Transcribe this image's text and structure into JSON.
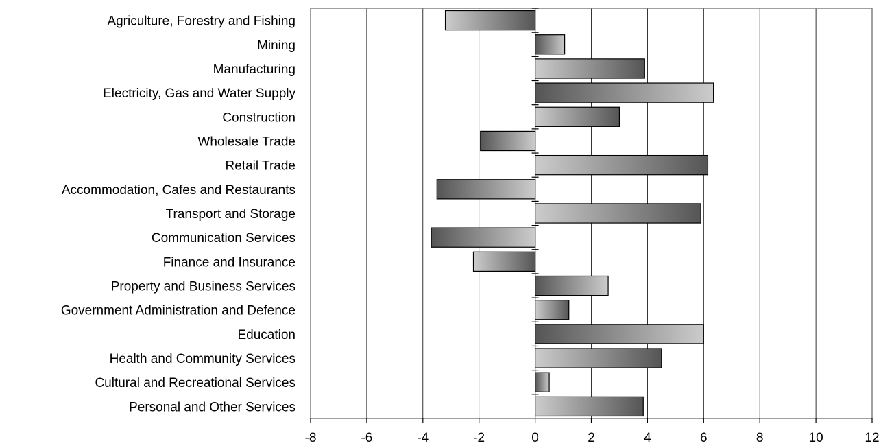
{
  "chart_data": {
    "type": "bar",
    "orientation": "horizontal",
    "title": "",
    "xlabel": "",
    "ylabel": "",
    "xlim": [
      -8,
      12
    ],
    "x_ticks": [
      -8,
      -6,
      -4,
      -2,
      0,
      2,
      4,
      6,
      8,
      10,
      12
    ],
    "x_tick_labels": [
      "-8",
      "-6",
      "-4",
      "-2",
      "0",
      "2",
      "4",
      "6",
      "8",
      "10",
      "12"
    ],
    "grid": "vertical",
    "categories": [
      "Agriculture, Forestry and Fishing",
      "Mining",
      "Manufacturing",
      "Electricity, Gas and Water Supply",
      "Construction",
      "Wholesale Trade",
      "Retail Trade",
      "Accommodation, Cafes and Restaurants",
      "Transport and Storage",
      "Communication Services",
      "Finance and Insurance",
      "Property and Business Services",
      "Government Administration and Defence",
      "Education",
      "Health and Community Services",
      "Cultural and Recreational Services",
      "Personal and Other Services"
    ],
    "values": [
      -3.2,
      1.05,
      3.9,
      6.35,
      3.0,
      -1.95,
      6.15,
      -3.5,
      5.9,
      -3.7,
      -2.2,
      2.6,
      1.2,
      6.0,
      4.5,
      0.5,
      3.85
    ],
    "colors": {
      "dark": "#555555",
      "light": "#cccccc",
      "border": "#000000",
      "grid": "#000000",
      "plot_border": "#808080"
    }
  }
}
